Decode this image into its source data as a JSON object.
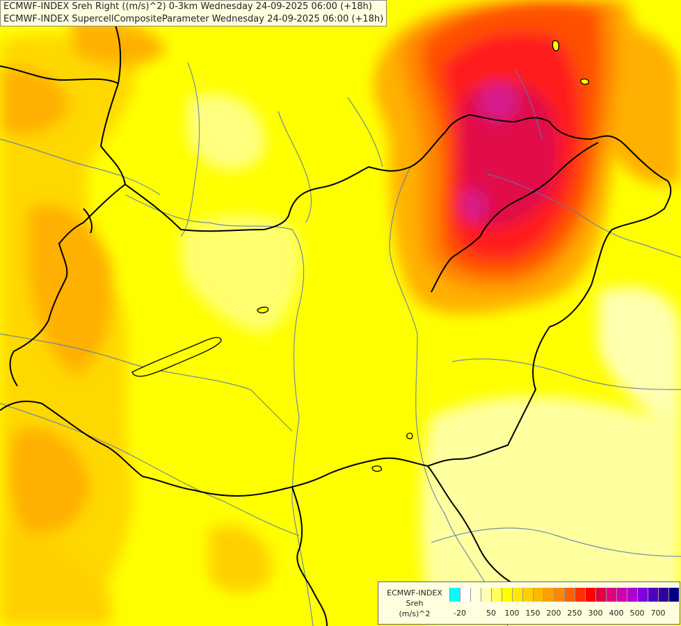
{
  "title_lines": [
    "ECMWF-INDEX Sreh Right ((m/s)^2) 0-3km Wednesday 24-09-2025 06:00 (+18h)",
    "ECMWF-INDEX SupercellCompositeParameter Wednesday 24-09-2025 06:00 (+18h)"
  ],
  "legend": {
    "model": "ECMWF-INDEX",
    "variable": "Sreh",
    "unit": "(m/s)^2",
    "colors": [
      "#00ffff",
      "#ffffff",
      "#ffffe0",
      "#ffffb0",
      "#ffff60",
      "#ffff00",
      "#ffe800",
      "#ffd000",
      "#ffb800",
      "#ffa000",
      "#ff8800",
      "#ff6000",
      "#ff3000",
      "#ff0000",
      "#e00040",
      "#e00080",
      "#d000b0",
      "#b000d0",
      "#8000e0",
      "#5000c0",
      "#3000a0",
      "#000080"
    ],
    "labels": [
      "-20",
      "50",
      "100",
      "150",
      "200",
      "250",
      "300",
      "400",
      "500",
      "700"
    ]
  },
  "field_colors": {
    "base": "#ffff00",
    "light": "#ffff90",
    "pale": "#ffffc8",
    "yellow_orange": "#ffd800",
    "orange": "#ffb000",
    "dark_orange": "#ff8800",
    "red_orange": "#ff5000",
    "red": "#ff1a1a",
    "crimson": "#e0104a",
    "magenta": "#d41a8c"
  },
  "line_colors": {
    "border": "#000000",
    "river": "#5a7ab0"
  }
}
